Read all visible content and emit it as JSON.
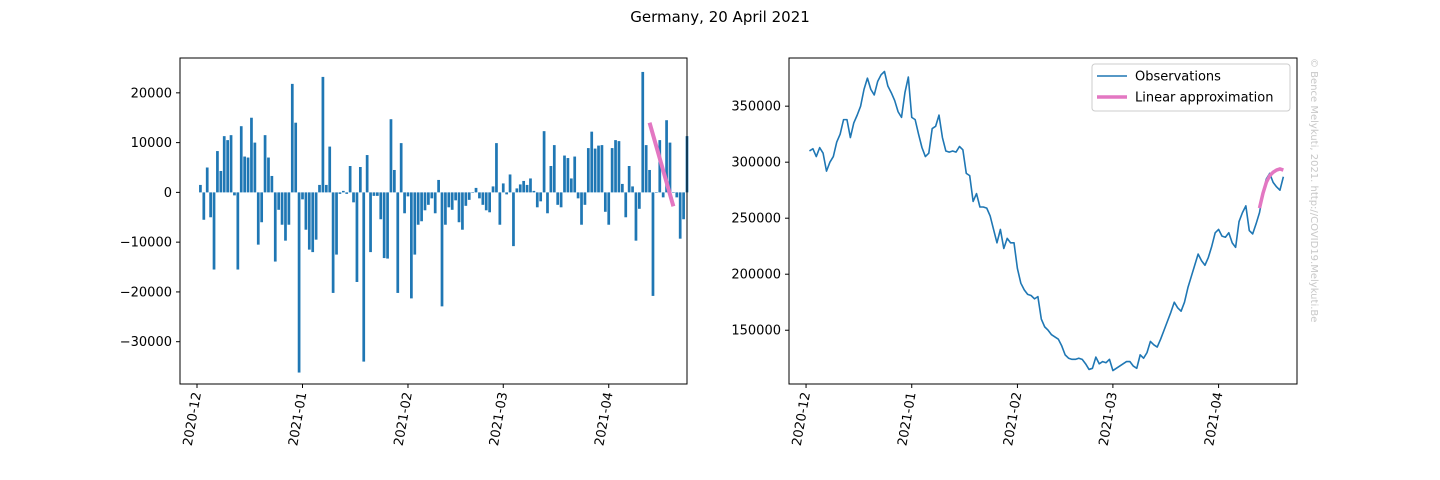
{
  "figure": {
    "title": "Germany, 20 April 2021",
    "credit": "© Bence Melykuti, 2021. http://COVID19.Melykuti.Be"
  },
  "chart_data": [
    {
      "type": "bar",
      "title": "",
      "xlabel": "",
      "ylabel": "",
      "x_start": "2020-12-02",
      "x_ticks": [
        "2020-12",
        "2021-01",
        "2021-02",
        "2021-03",
        "2021-04"
      ],
      "x_tick_dates": [
        "2020-12-01",
        "2021-01-01",
        "2021-02-01",
        "2021-03-01",
        "2021-04-01"
      ],
      "xlim": [
        "2020-11-26",
        "2021-04-24"
      ],
      "y_ticks": [
        -30000,
        -20000,
        -10000,
        0,
        10000,
        20000
      ],
      "ylim": [
        -38500,
        27000
      ],
      "grid": false,
      "bar_color": "#1f77b4",
      "values": [
        1500,
        -5500,
        5000,
        -5000,
        -15500,
        8300,
        4300,
        11300,
        10500,
        11500,
        -600,
        -15500,
        13300,
        7200,
        7000,
        15000,
        10000,
        -10500,
        -6000,
        11500,
        7000,
        3300,
        -13900,
        -3500,
        -6500,
        -9700,
        -6500,
        21800,
        14000,
        -36200,
        -1400,
        -7500,
        -11500,
        -12000,
        -9500,
        1500,
        23200,
        1500,
        9200,
        -20200,
        -12500,
        -300,
        300,
        -300,
        5300,
        -2000,
        -18000,
        5100,
        -34000,
        7500,
        -12000,
        -700,
        -700,
        -5400,
        -13200,
        -13300,
        14700,
        4500,
        -20200,
        9900,
        -4200,
        -800,
        -21300,
        -12500,
        -6500,
        -5800,
        -3600,
        -2500,
        -1200,
        -4200,
        2500,
        -22900,
        -6500,
        -3000,
        -3500,
        -1600,
        -6000,
        -7500,
        -2700,
        -1500,
        -100,
        900,
        -1200,
        -2500,
        -3600,
        -4000,
        1200,
        9900,
        -6500,
        1800,
        -400,
        3600,
        -10800,
        800,
        1600,
        2300,
        1500,
        2800,
        300,
        -3000,
        -1800,
        12300,
        -4200,
        5300,
        9500,
        -2500,
        -3000,
        7400,
        6900,
        2800,
        7200,
        -1200,
        -6500,
        -2500,
        8900,
        12200,
        8800,
        9400,
        9500,
        -3900,
        -6500,
        8900,
        10500,
        10300,
        1700,
        -5000,
        5300,
        1200,
        -9700,
        -3300,
        24200,
        9500,
        4500,
        -20800,
        0,
        10500,
        -1000,
        14500,
        10000,
        0,
        -1000,
        -9300,
        -5400,
        11300
      ],
      "series": [
        {
          "name": "",
          "type": "line",
          "color": "#e377c2",
          "points": [
            [
              "2021-04-13",
              14000
            ],
            [
              "2021-04-20",
              -2800
            ]
          ]
        }
      ]
    },
    {
      "type": "line",
      "title": "",
      "xlabel": "",
      "ylabel": "",
      "x_start": "2020-12-02",
      "x_ticks": [
        "2020-12",
        "2021-01",
        "2021-02",
        "2021-03",
        "2021-04"
      ],
      "x_tick_dates": [
        "2020-12-01",
        "2021-01-01",
        "2021-02-01",
        "2021-03-01",
        "2021-04-01"
      ],
      "xlim": [
        "2020-11-26",
        "2021-04-24"
      ],
      "y_ticks": [
        150000,
        200000,
        250000,
        300000,
        350000
      ],
      "ylim": [
        102000,
        393000
      ],
      "grid": false,
      "legend": "top-right",
      "series": [
        {
          "name": "Observations",
          "color": "#1f77b4",
          "values": [
            310000,
            312000,
            305000,
            313000,
            308000,
            292000,
            300000,
            305000,
            318000,
            325000,
            338000,
            338000,
            322000,
            335000,
            342000,
            350000,
            365000,
            375000,
            365000,
            360000,
            372000,
            378000,
            381000,
            368000,
            362000,
            355000,
            345000,
            340000,
            362000,
            376000,
            340000,
            338000,
            325000,
            313000,
            305000,
            308000,
            330000,
            332000,
            342000,
            322000,
            310000,
            309000,
            310000,
            309000,
            314000,
            311000,
            290000,
            288000,
            265000,
            272000,
            260000,
            260000,
            259000,
            252000,
            240000,
            228000,
            240000,
            223000,
            232000,
            228000,
            228000,
            205000,
            192000,
            186000,
            182000,
            181000,
            178000,
            180000,
            160000,
            153000,
            150000,
            146000,
            144000,
            142000,
            136000,
            128000,
            125000,
            124000,
            124000,
            125000,
            124000,
            120000,
            115000,
            116000,
            126000,
            120000,
            122000,
            121000,
            124000,
            114000,
            116000,
            118000,
            120000,
            122000,
            122000,
            118000,
            116000,
            128000,
            125000,
            130000,
            140000,
            137000,
            135000,
            142000,
            150000,
            158000,
            166000,
            175000,
            170000,
            167000,
            175000,
            188000,
            198000,
            208000,
            218000,
            212000,
            208000,
            215000,
            225000,
            237000,
            240000,
            234000,
            233000,
            237000,
            228000,
            224000,
            247000,
            255000,
            261000,
            239000,
            236000,
            245000,
            255000,
            272000,
            285000,
            290000,
            282000,
            278000,
            275000,
            287000
          ]
        },
        {
          "name": "Linear approximation",
          "color": "#e377c2",
          "points": [
            [
              "2021-04-13",
              259000
            ],
            [
              "2021-04-14",
              272000
            ],
            [
              "2021-04-15",
              282000
            ],
            [
              "2021-04-16",
              288000
            ],
            [
              "2021-04-17",
              291000
            ],
            [
              "2021-04-18",
              293000
            ],
            [
              "2021-04-19",
              294000
            ],
            [
              "2021-04-20",
              293000
            ]
          ]
        }
      ]
    }
  ]
}
